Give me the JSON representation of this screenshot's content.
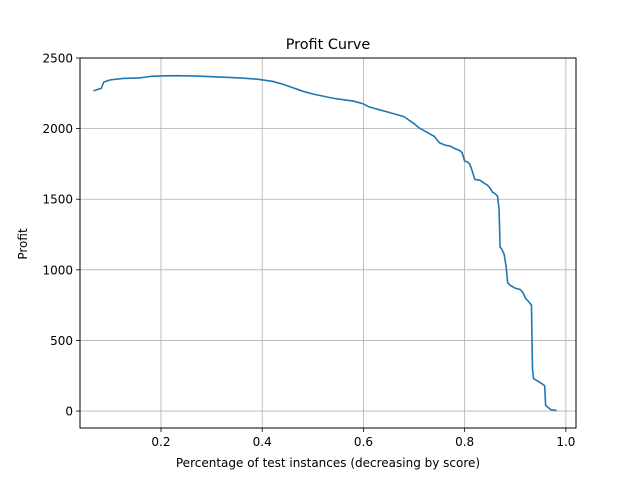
{
  "chart_data": {
    "type": "line",
    "title": "Profit Curve",
    "xlabel": "Percentage of test instances (decreasing by score)",
    "ylabel": "Profit",
    "xlim": [
      0.04,
      1.02
    ],
    "ylim": [
      -120,
      2500
    ],
    "grid": true,
    "legend": "none",
    "xticks": [
      0.2,
      0.4,
      0.6,
      0.8,
      1.0
    ],
    "xtick_labels": [
      "0.2",
      "0.4",
      "0.6",
      "0.8",
      "1.0"
    ],
    "yticks": [
      0,
      500,
      1000,
      1500,
      2000,
      2500
    ],
    "ytick_labels": [
      "0",
      "500",
      "1000",
      "1500",
      "2000",
      "2500"
    ],
    "line_color": "#1f77b4",
    "grid_color": "#b0b0b0",
    "series": [
      {
        "x": [
          0.068,
          0.082,
          0.087,
          0.1,
          0.125,
          0.16,
          0.18,
          0.2,
          0.23,
          0.27,
          0.3,
          0.33,
          0.36,
          0.39,
          0.42,
          0.44,
          0.46,
          0.48,
          0.5,
          0.52,
          0.54,
          0.56,
          0.58,
          0.6,
          0.61,
          0.62,
          0.63,
          0.645,
          0.66,
          0.68,
          0.69,
          0.7,
          0.71,
          0.72,
          0.73,
          0.74,
          0.75,
          0.76,
          0.765,
          0.77,
          0.78,
          0.79,
          0.795,
          0.8,
          0.805,
          0.81,
          0.815,
          0.82,
          0.83,
          0.84,
          0.845,
          0.85,
          0.855,
          0.86,
          0.865,
          0.868,
          0.87,
          0.873,
          0.878,
          0.882,
          0.885,
          0.89,
          0.9,
          0.91,
          0.915,
          0.92,
          0.925,
          0.93,
          0.932,
          0.934,
          0.936,
          0.95,
          0.958,
          0.96,
          0.97,
          0.98
        ],
        "y": [
          2270,
          2285,
          2330,
          2345,
          2355,
          2360,
          2370,
          2373,
          2375,
          2372,
          2368,
          2363,
          2358,
          2350,
          2335,
          2315,
          2290,
          2265,
          2245,
          2230,
          2215,
          2205,
          2195,
          2175,
          2155,
          2145,
          2135,
          2120,
          2105,
          2085,
          2060,
          2035,
          2005,
          1985,
          1965,
          1945,
          1900,
          1885,
          1880,
          1878,
          1860,
          1845,
          1830,
          1770,
          1765,
          1750,
          1700,
          1640,
          1635,
          1610,
          1600,
          1580,
          1550,
          1540,
          1520,
          1430,
          1160,
          1150,
          1110,
          1020,
          910,
          890,
          870,
          860,
          840,
          800,
          780,
          760,
          750,
          300,
          230,
          200,
          180,
          40,
          10,
          5
        ]
      }
    ]
  }
}
